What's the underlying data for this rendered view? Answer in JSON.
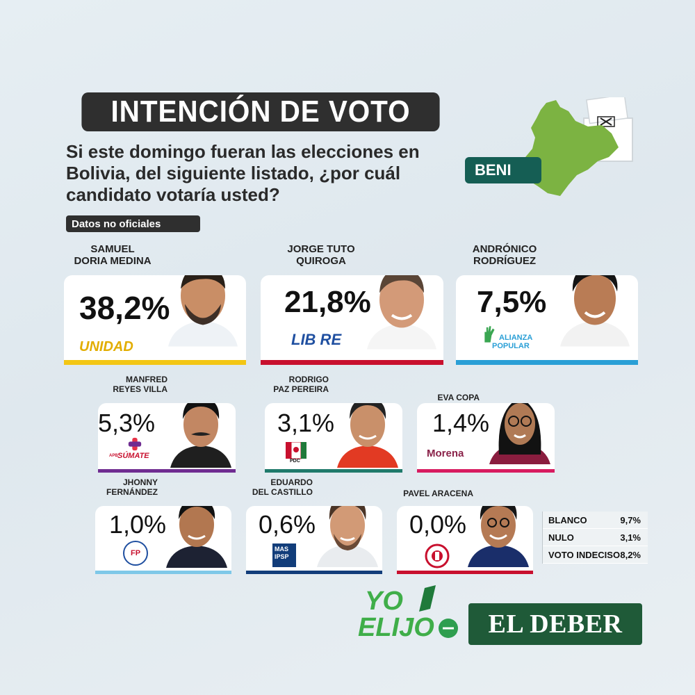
{
  "header": {
    "title": "INTENCIÓN DE VOTO",
    "question": "Si este domingo fueran las elecciones en Bolivia, del siguiente listado, ¿por cuál candidato votaría usted?",
    "region": "BENI",
    "tag": "Datos no oficiales"
  },
  "chart_data": {
    "type": "bar",
    "categories": [
      "SAMUEL DORIA MEDINA",
      "JORGE TUTO QUIROGA",
      "ANDRÓNICO RODRÍGUEZ",
      "MANFRED REYES VILLA",
      "RODRIGO PAZ PEREIRA",
      "EVA COPA",
      "JHONNY FERNÁNDEZ",
      "EDUARDO DEL CASTILLO",
      "PAVEL ARACENA"
    ],
    "values": [
      38.2,
      21.8,
      7.5,
      5.3,
      3.1,
      1.4,
      1.0,
      0.6,
      0.0
    ],
    "labels": [
      "38,2%",
      "21,8%",
      "7,5%",
      "5,3%",
      "3,1%",
      "1,4%",
      "1,0%",
      "0,6%",
      "0,0%"
    ],
    "parties": [
      "UNIDAD",
      "LIBRE",
      "ALIANZA POPULAR",
      "APB SÚMATE",
      "PDC",
      "Morena",
      "FPV",
      "MAS IPSP",
      "Libertad y Progreso"
    ],
    "colors": [
      "#f3c614",
      "#c8102e",
      "#2a9fd6",
      "#6f2c91",
      "#1f7a6b",
      "#d81b60",
      "#7ec8e8",
      "#123d7a",
      "#c8102e"
    ]
  },
  "candidates": [
    {
      "line1": "SAMUEL",
      "line2": "DORIA MEDINA",
      "pct": "38,2%",
      "party": "UNIDAD"
    },
    {
      "line1": "JORGE TUTO",
      "line2": "QUIROGA",
      "pct": "21,8%",
      "party": "LIB RE"
    },
    {
      "line1": "ANDRÓNICO",
      "line2": "RODRÍGUEZ",
      "pct": "7,5%",
      "party1": "ALIANZA",
      "party2": "POPULAR"
    },
    {
      "line1": "MANFRED",
      "line2": "REYES VILLA",
      "pct": "5,3%",
      "party": "SÚMATE",
      "party_pre": "APB"
    },
    {
      "line1": "RODRIGO",
      "line2": "PAZ PEREIRA",
      "pct": "3,1%",
      "party": "PDC"
    },
    {
      "line1": "EVA COPA",
      "line2": "",
      "pct": "1,4%",
      "party": "Morena"
    },
    {
      "line1": "JHONNY",
      "line2": "FERNÁNDEZ",
      "pct": "1,0%",
      "party": "FP"
    },
    {
      "line1": "EDUARDO",
      "line2": "DEL CASTILLO",
      "pct": "0,6%",
      "party1": "MAS",
      "party2": "IPSP"
    },
    {
      "line1": "PAVEL ARACENA",
      "line2": "",
      "pct": "0,0%"
    }
  ],
  "others": [
    {
      "label": "BLANCO",
      "value": "9,7%"
    },
    {
      "label": "NULO",
      "value": "3,1%"
    },
    {
      "label": "VOTO INDECISO",
      "value": "8,2%"
    }
  ],
  "brands": {
    "yo_elijo_1": "YO",
    "yo_elijo_2": "ELIJO",
    "el_deber": "EL DEBER"
  }
}
